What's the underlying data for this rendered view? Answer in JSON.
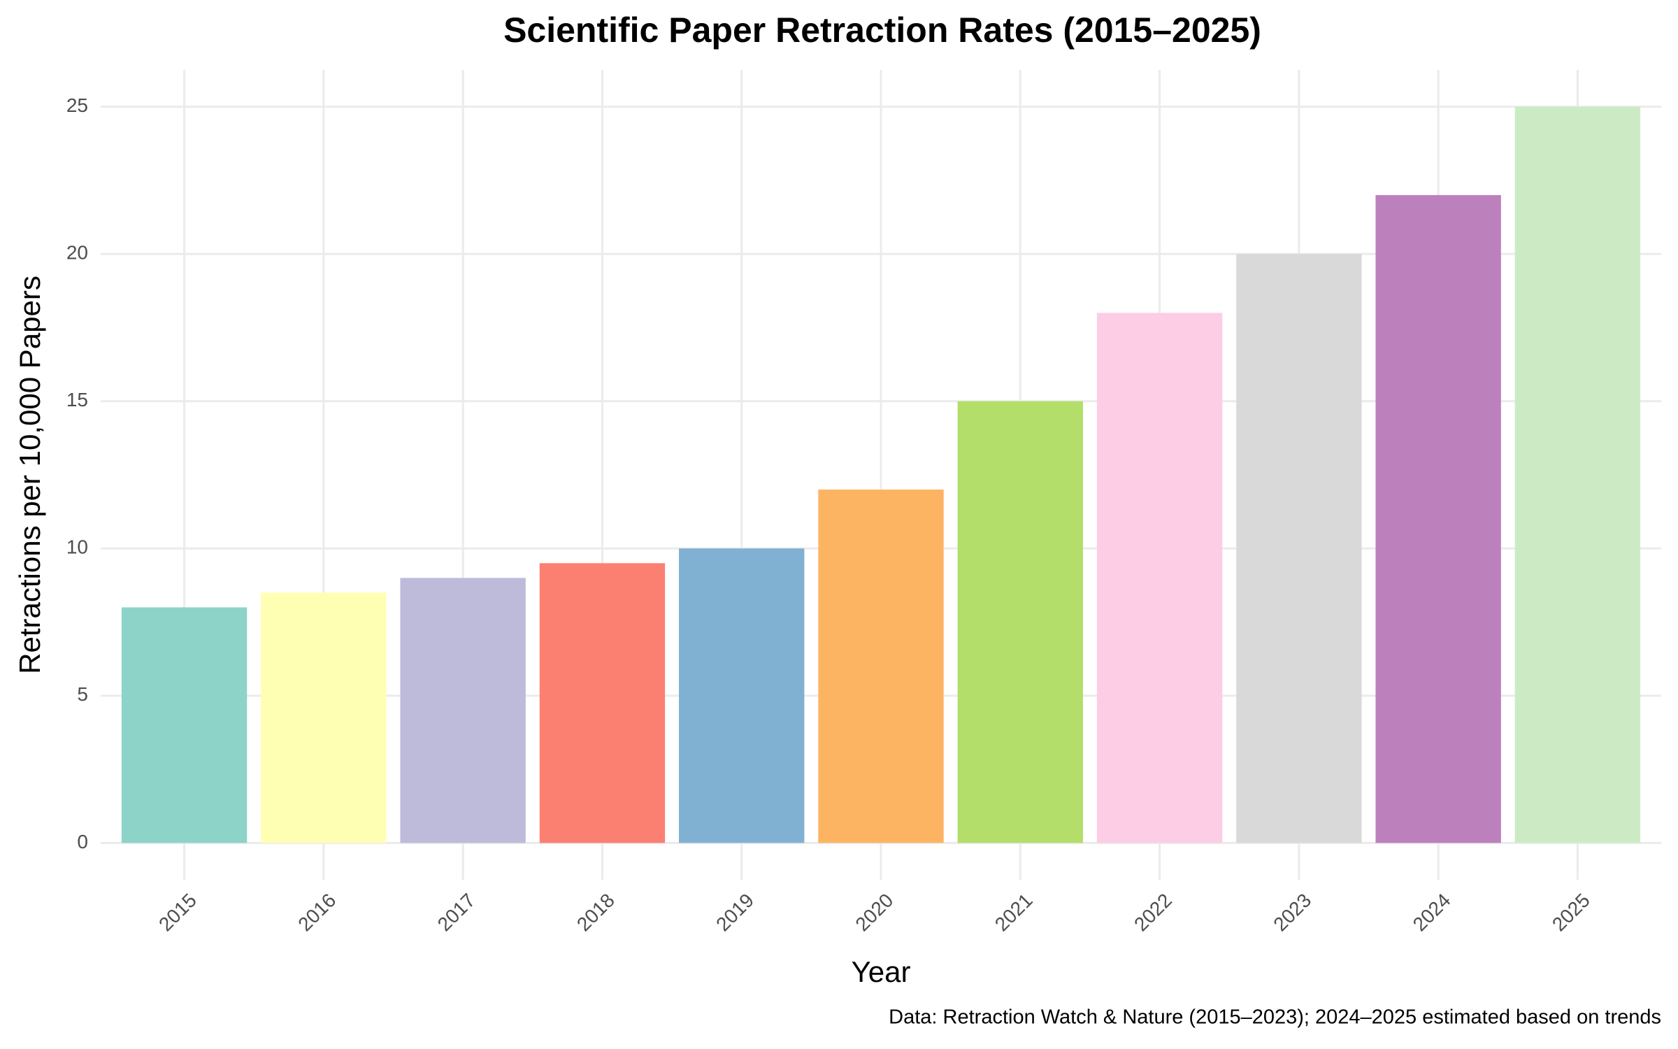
{
  "chart_data": {
    "type": "bar",
    "title": "Scientific Paper Retraction Rates (2015–2025)",
    "x_label": "Year",
    "y_label": "Retractions per 10,000 Papers",
    "caption": "Data: Retraction Watch & Nature (2015–2023); 2024–2025 estimated based on trends",
    "categories": [
      "2015",
      "2016",
      "2017",
      "2018",
      "2019",
      "2020",
      "2021",
      "2022",
      "2023",
      "2024",
      "2025"
    ],
    "values": [
      8,
      8.5,
      9,
      9.5,
      10,
      12,
      15,
      18,
      20,
      22,
      25
    ],
    "colors": [
      "#8dd3c7",
      "#ffffb3",
      "#bebada",
      "#fb8072",
      "#80b1d3",
      "#fdb462",
      "#b3de69",
      "#fccde5",
      "#d9d9d9",
      "#bc80bd",
      "#ccebc5"
    ],
    "ylim": [
      -1.25,
      26.25
    ],
    "yticks": [
      0,
      5,
      10,
      15,
      20,
      25
    ],
    "grid": true
  }
}
